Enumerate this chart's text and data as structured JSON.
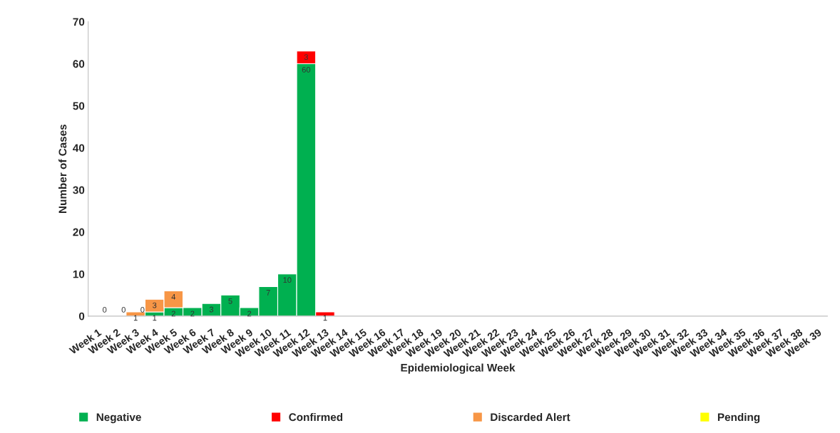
{
  "chart_data": {
    "type": "bar",
    "stacked": true,
    "xlabel": "Epidemiological Week",
    "ylabel": "Number of Cases",
    "categories": [
      "Week 1",
      "Week 2",
      "Week 3",
      "Week 4",
      "Week 5",
      "Week 6",
      "Week 7",
      "Week 8",
      "Week 9",
      "Week 10",
      "Week 11",
      "Week 12",
      "Week 13",
      "Week 14",
      "Week 15",
      "Week 16",
      "Week 17",
      "Week 18",
      "Week 19",
      "Week 20",
      "Week 21",
      "Week 22",
      "Week 23",
      "Week 24",
      "Week 25",
      "Week 26",
      "Week 27",
      "Week 28",
      "Week 29",
      "Week 30",
      "Week 31",
      "Week 32",
      "Week 33",
      "Week 34",
      "Week 35",
      "Week 36",
      "Week 37",
      "Week 38",
      "Week 39"
    ],
    "series": [
      {
        "name": "Negative",
        "color": "#00b050",
        "values": [
          0,
          0,
          0,
          1,
          2,
          2,
          3,
          5,
          2,
          7,
          10,
          60,
          0,
          0,
          0,
          0,
          0,
          0,
          0,
          0,
          0,
          0,
          0,
          0,
          0,
          0,
          0,
          0,
          0,
          0,
          0,
          0,
          0,
          0,
          0,
          0,
          0,
          0,
          0
        ],
        "value_labels": [
          "0",
          "0",
          "0",
          "1",
          "2",
          "2",
          "3",
          "5",
          "2",
          "7",
          "10",
          "60",
          null,
          null,
          null,
          null,
          null,
          null,
          null,
          null,
          null,
          null,
          null,
          null,
          null,
          null,
          null,
          null,
          null,
          null,
          null,
          null,
          null,
          null,
          null,
          null,
          null,
          null,
          null
        ]
      },
      {
        "name": "Confirmed",
        "color": "#ff0000",
        "values": [
          0,
          0,
          0,
          0,
          0,
          0,
          0,
          0,
          0,
          0,
          0,
          3,
          1,
          0,
          0,
          0,
          0,
          0,
          0,
          0,
          0,
          0,
          0,
          0,
          0,
          0,
          0,
          0,
          0,
          0,
          0,
          0,
          0,
          0,
          0,
          0,
          0,
          0,
          0
        ],
        "value_labels": [
          null,
          null,
          null,
          null,
          null,
          null,
          null,
          null,
          null,
          null,
          null,
          "3",
          "1",
          null,
          null,
          null,
          null,
          null,
          null,
          null,
          null,
          null,
          null,
          null,
          null,
          null,
          null,
          null,
          null,
          null,
          null,
          null,
          null,
          null,
          null,
          null,
          null,
          null,
          null
        ]
      },
      {
        "name": "Discarded Alert",
        "color": "#f79646",
        "values": [
          0,
          0,
          1,
          3,
          4,
          0,
          0,
          0,
          0,
          0,
          0,
          0,
          0,
          0,
          0,
          0,
          0,
          0,
          0,
          0,
          0,
          0,
          0,
          0,
          0,
          0,
          0,
          0,
          0,
          0,
          0,
          0,
          0,
          0,
          0,
          0,
          0,
          0,
          0
        ],
        "value_labels": [
          null,
          null,
          "1",
          "3",
          "4",
          null,
          null,
          null,
          null,
          null,
          null,
          null,
          null,
          null,
          null,
          null,
          null,
          null,
          null,
          null,
          null,
          null,
          null,
          null,
          null,
          null,
          null,
          null,
          null,
          null,
          null,
          null,
          null,
          null,
          null,
          null,
          null,
          null,
          null
        ]
      },
      {
        "name": "Pending",
        "color": "#ffff00",
        "values": [
          0,
          0,
          0,
          0,
          0,
          0,
          0,
          0,
          0,
          0,
          0,
          0,
          0,
          0,
          0,
          0,
          0,
          0,
          0,
          0,
          0,
          0,
          0,
          0,
          0,
          0,
          0,
          0,
          0,
          0,
          0,
          0,
          0,
          0,
          0,
          0,
          0,
          0,
          0
        ]
      }
    ],
    "ylim": [
      0,
      70
    ],
    "yticks": [
      0,
      10,
      20,
      30,
      40,
      50,
      60,
      70
    ],
    "grid": false,
    "legend": "bottom"
  }
}
